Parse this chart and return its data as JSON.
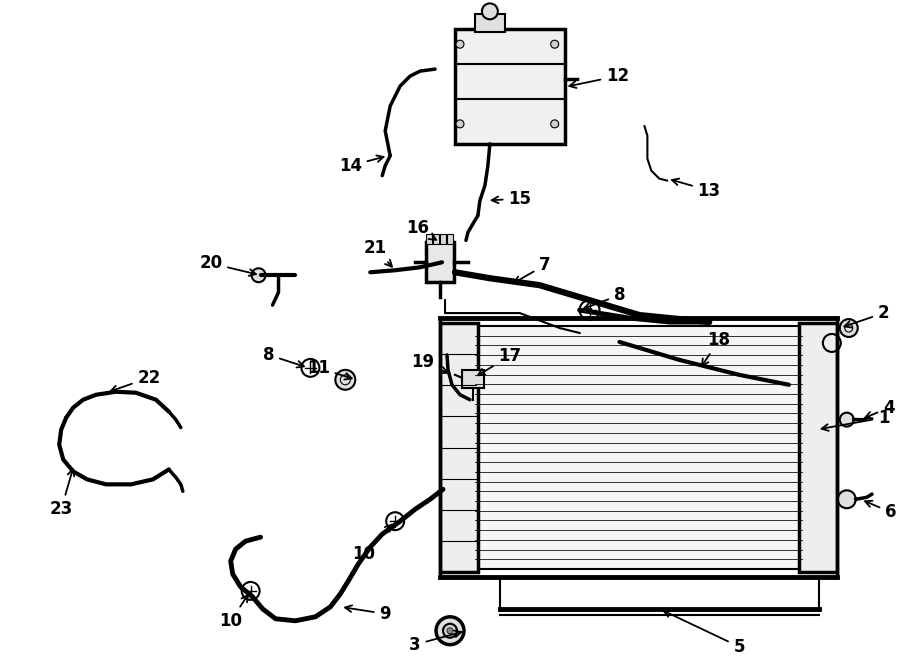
{
  "background_color": "#ffffff",
  "line_color": "#000000",
  "figure_width": 9.0,
  "figure_height": 6.62,
  "dpi": 100,
  "label_fontsize": 12,
  "lw_thick": 3.5,
  "lw_med": 2.5,
  "lw_thin": 1.5
}
